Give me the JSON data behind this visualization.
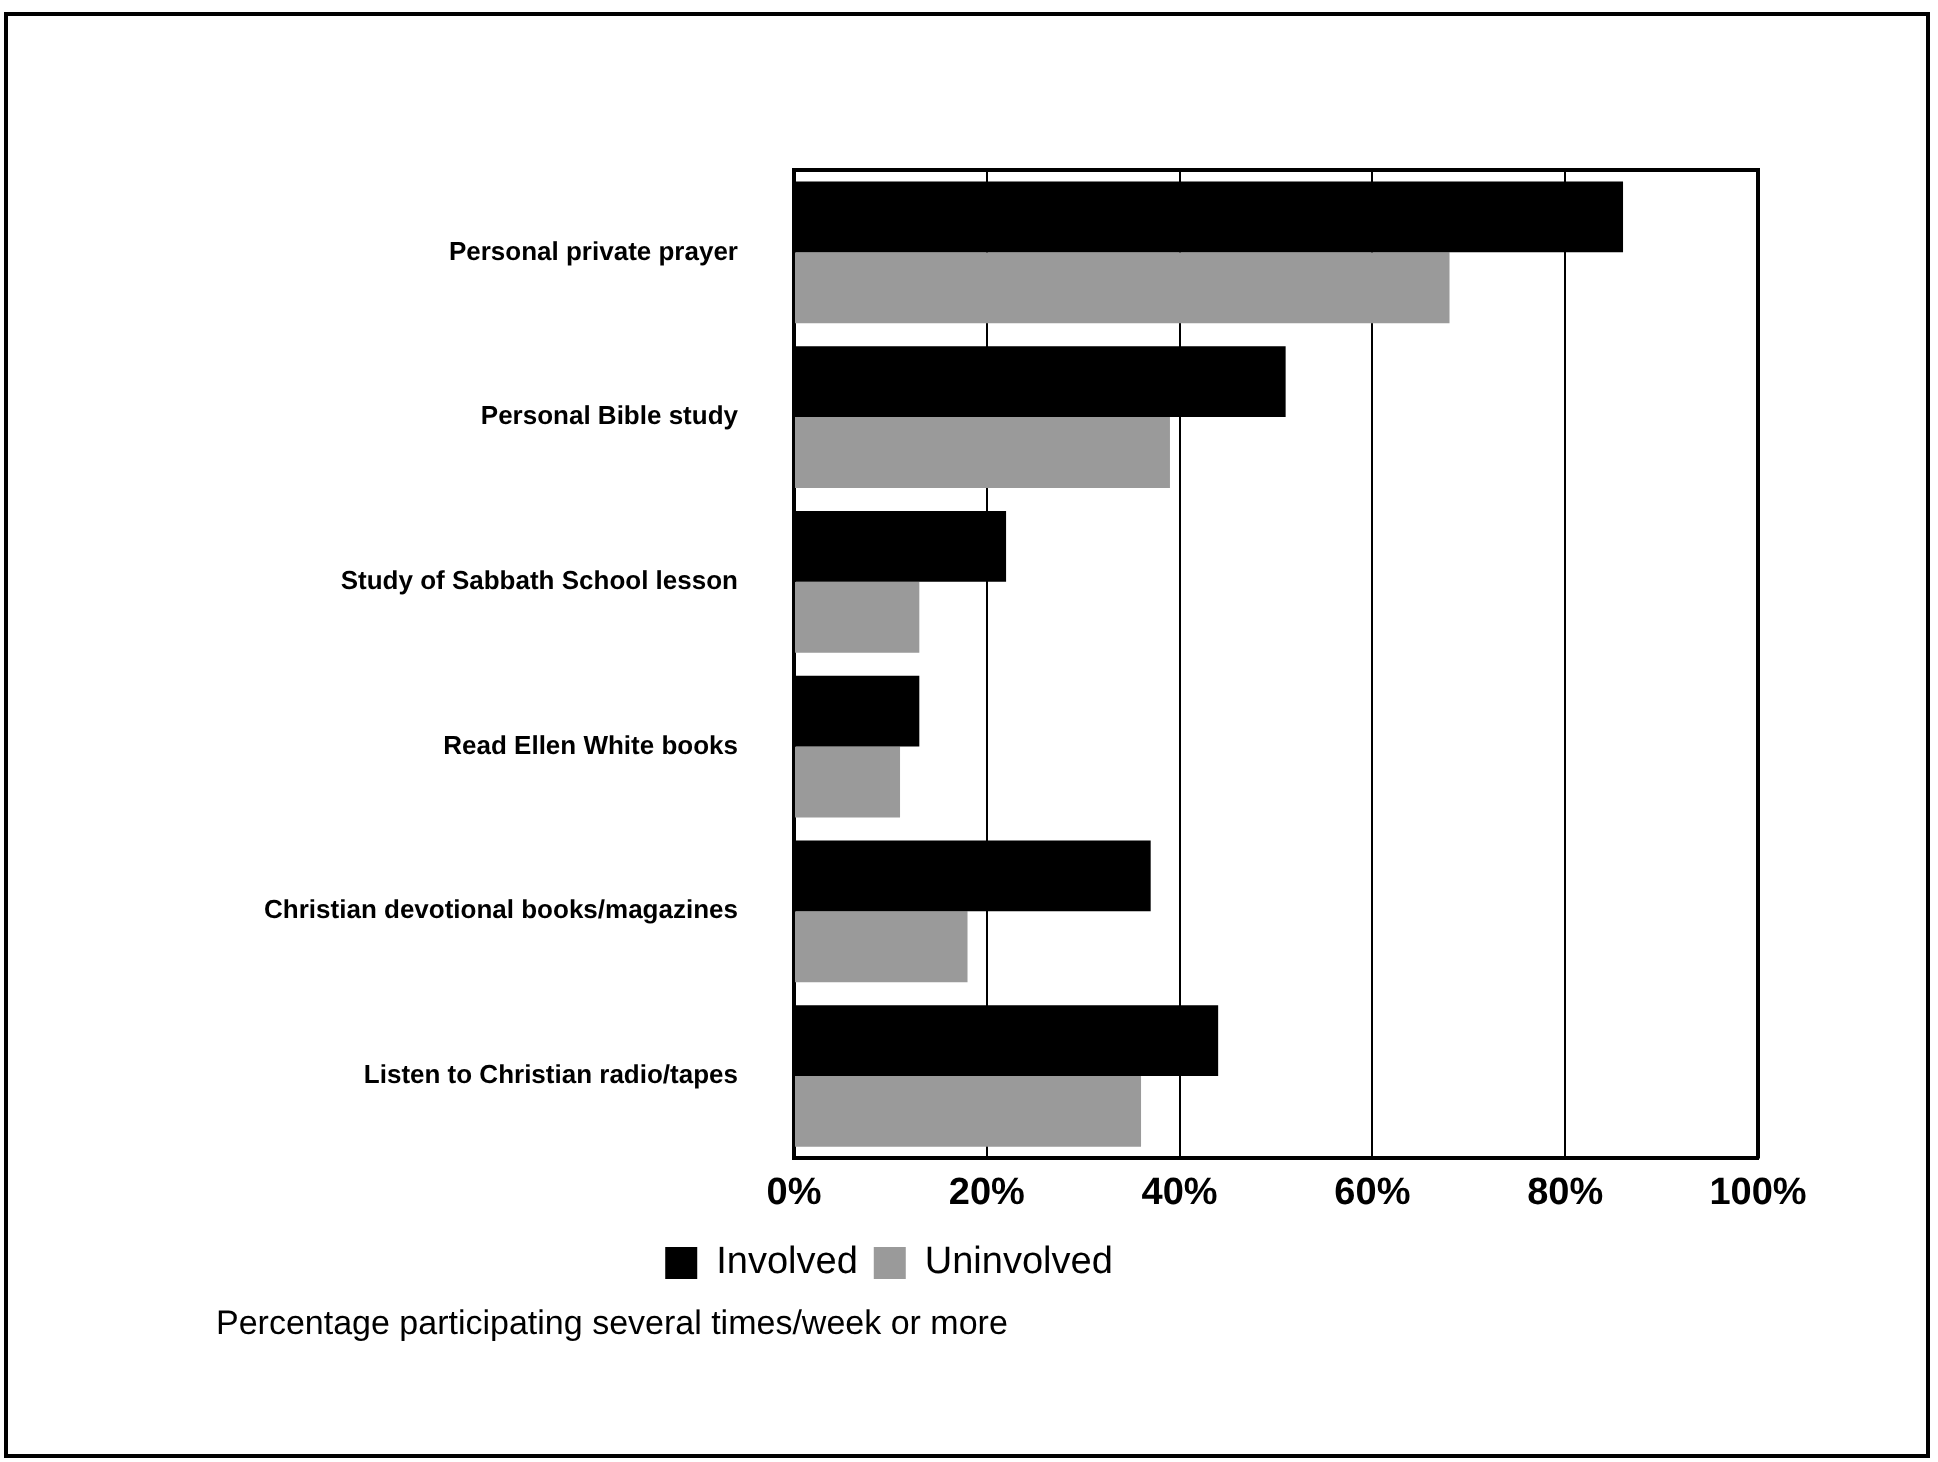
{
  "chart_data": {
    "type": "bar",
    "orientation": "horizontal",
    "categories": [
      "Personal private prayer",
      "Personal Bible study",
      "Study of Sabbath School lesson",
      "Read Ellen White books",
      "Christian devotional books/magazines",
      "Listen to Christian radio/tapes"
    ],
    "series": [
      {
        "name": "Involved",
        "color": "#000000",
        "values": [
          86,
          51,
          22,
          13,
          37,
          44
        ]
      },
      {
        "name": "Uninvolved",
        "color": "#9a9a9a",
        "values": [
          68,
          39,
          13,
          11,
          18,
          36
        ]
      }
    ],
    "xlim": [
      0,
      100
    ],
    "xticks": [
      {
        "value": 0,
        "label": "0%"
      },
      {
        "value": 20,
        "label": "20%"
      },
      {
        "value": 40,
        "label": "40%"
      },
      {
        "value": 60,
        "label": "60%"
      },
      {
        "value": 80,
        "label": "80%"
      },
      {
        "value": 100,
        "label": "100%"
      }
    ],
    "grid": "x",
    "legend": "bottom",
    "annotations": [
      "Percentage participating several times/week or more"
    ]
  }
}
